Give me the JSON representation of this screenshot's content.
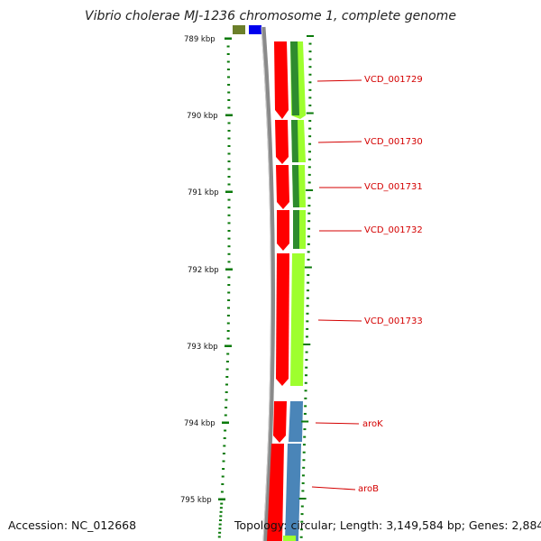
{
  "title": "Vibrio cholerae MJ-1236 chromosome 1, complete genome",
  "accession_text": "Accession: NC_012668",
  "info_text": "Topology: circular; Length: 3,149,584 bp; Genes: 2,884",
  "scale": {
    "labels": [
      "789 kbp",
      "790 kbp",
      "791 kbp",
      "792 kbp",
      "793 kbp",
      "794 kbp",
      "795 kbp"
    ],
    "minor_ticks_per_kbp": 10
  },
  "gene_labels": [
    "VCD_001729",
    "VCD_001730",
    "VCD_001731",
    "VCD_001732",
    "VCD_001733",
    "aroK",
    "aroB"
  ],
  "colors": {
    "backbone": "#8a8a8a",
    "cds_forward": "#ff0000",
    "feature_green": "#9eff2e",
    "feature_dark_green": "#2e8b2e",
    "feature_blue": "#4a85b8",
    "feature_olive": "#6b7f2a",
    "feature_navy": "#0000ee",
    "tick_color": "#0a7a0a",
    "label_color": "#d40000"
  }
}
